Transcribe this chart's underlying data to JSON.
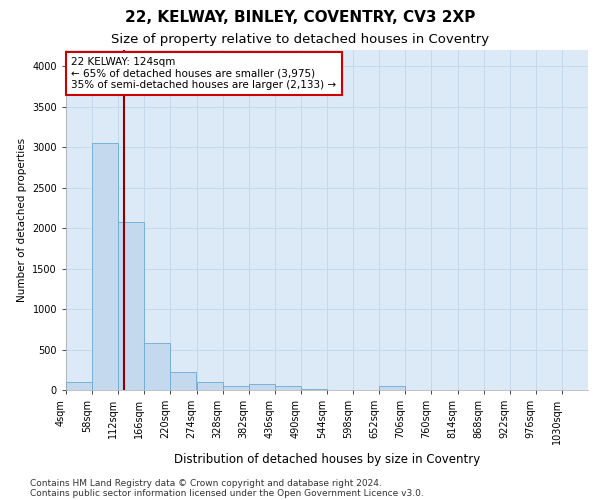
{
  "title1": "22, KELWAY, BINLEY, COVENTRY, CV3 2XP",
  "title2": "Size of property relative to detached houses in Coventry",
  "xlabel": "Distribution of detached houses by size in Coventry",
  "ylabel": "Number of detached properties",
  "bin_edges": [
    4,
    58,
    112,
    166,
    220,
    274,
    328,
    382,
    436,
    490,
    544,
    598,
    652,
    706,
    760,
    814,
    868,
    922,
    976,
    1030,
    1084
  ],
  "bin_heights": [
    105,
    3050,
    2080,
    580,
    225,
    95,
    55,
    70,
    45,
    8,
    0,
    0,
    45,
    0,
    0,
    0,
    0,
    0,
    0,
    0
  ],
  "bar_color": "#c5d9ee",
  "bar_edgecolor": "#6aaad4",
  "vline_x": 124,
  "vline_color": "#8b0000",
  "annotation_line1": "22 KELWAY: 124sqm",
  "annotation_line2": "← 65% of detached houses are smaller (3,975)",
  "annotation_line3": "35% of semi-detached houses are larger (2,133) →",
  "annotation_box_edgecolor": "#cc0000",
  "annotation_box_facecolor": "#ffffff",
  "ylim": [
    0,
    4200
  ],
  "yticks": [
    0,
    500,
    1000,
    1500,
    2000,
    2500,
    3000,
    3500,
    4000
  ],
  "grid_color": "#c5d8ec",
  "bg_color": "#dce9f7",
  "footer1": "Contains HM Land Registry data © Crown copyright and database right 2024.",
  "footer2": "Contains public sector information licensed under the Open Government Licence v3.0.",
  "title1_fontsize": 11,
  "title2_fontsize": 9.5,
  "xlabel_fontsize": 8.5,
  "ylabel_fontsize": 7.5,
  "tick_fontsize": 7,
  "annotation_fontsize": 7.5,
  "footer_fontsize": 6.5
}
